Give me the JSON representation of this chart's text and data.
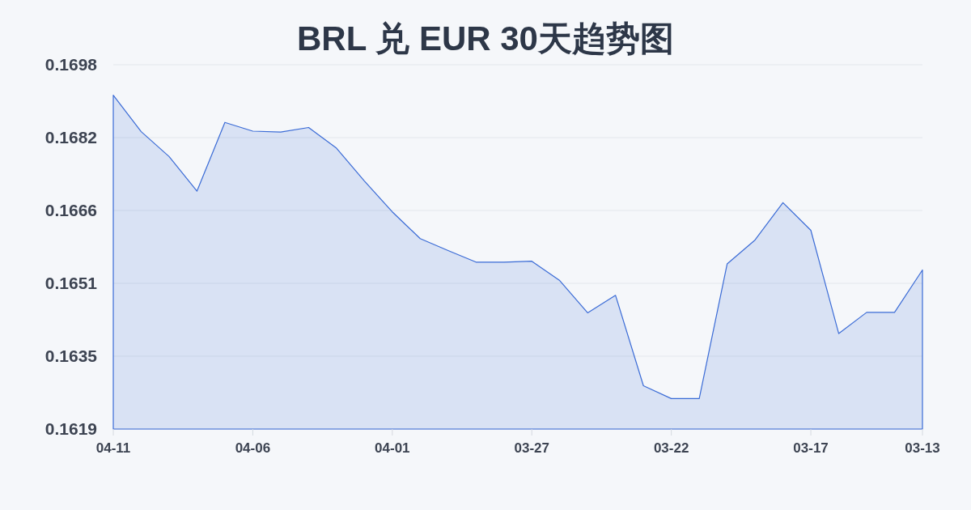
{
  "chart_data": {
    "type": "area",
    "title": "BRL 兑 EUR 30天趋势图",
    "categories": [
      "04-11",
      null,
      null,
      null,
      null,
      "04-06",
      null,
      null,
      null,
      null,
      "04-01",
      null,
      null,
      null,
      null,
      "03-27",
      null,
      null,
      null,
      null,
      "03-22",
      null,
      null,
      null,
      null,
      "03-17",
      null,
      null,
      null,
      "03-13"
    ],
    "series": [
      {
        "color": "#3a6bd6",
        "values": [
          0.16914,
          0.16835,
          0.16781,
          0.16706,
          0.16855,
          0.16836,
          0.16834,
          0.16844,
          0.16799,
          0.16728,
          0.16661,
          0.16603,
          0.16577,
          0.16552,
          0.16552,
          0.16554,
          0.16512,
          0.16442,
          0.1648,
          0.16284,
          0.16256,
          0.16256,
          0.16548,
          0.166,
          0.16681,
          0.16621,
          0.16397,
          0.16443,
          0.16443,
          0.16535
        ]
      }
    ],
    "ylim": [
      0.1619,
      0.1698
    ],
    "yticks": [
      0.1619,
      {
        "value": 0.16348,
        "label": "0.1635"
      },
      {
        "value": 0.16506,
        "label": "0.1651"
      },
      {
        "value": 0.16664,
        "label": "0.1666"
      },
      {
        "value": 0.16822,
        "label": "0.1682"
      },
      0.1698
    ],
    "grid": "y"
  }
}
